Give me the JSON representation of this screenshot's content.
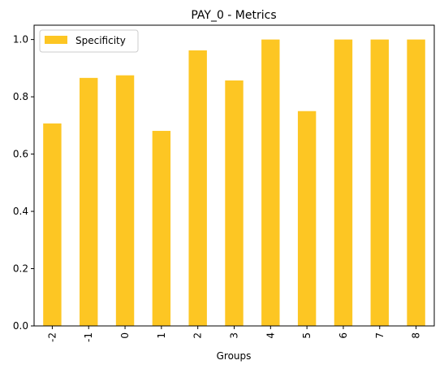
{
  "chart_data": {
    "type": "bar",
    "title": "PAY_0 - Metrics",
    "xlabel": "Groups",
    "ylabel": "",
    "categories": [
      "-2",
      "-1",
      "0",
      "1",
      "2",
      "3",
      "4",
      "5",
      "6",
      "7",
      "8"
    ],
    "series": [
      {
        "name": "Specificity",
        "color": "#fdc623",
        "values": [
          0.707,
          0.866,
          0.875,
          0.681,
          0.962,
          0.857,
          1.0,
          0.75,
          1.0,
          1.0,
          1.0
        ]
      }
    ],
    "ylim": [
      0,
      1.05
    ],
    "yticks": [
      "0.0",
      "0.2",
      "0.4",
      "0.6",
      "0.8",
      "1.0"
    ],
    "grid": false,
    "legend_position": "upper left"
  }
}
